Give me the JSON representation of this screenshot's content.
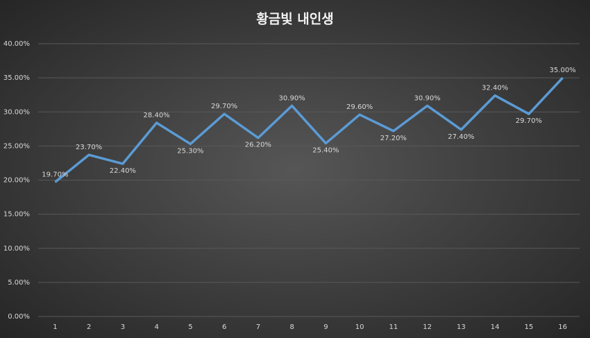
{
  "chart_data": {
    "type": "line",
    "title": "황금빛 내인생",
    "categories": [
      "1",
      "2",
      "3",
      "4",
      "5",
      "6",
      "7",
      "8",
      "9",
      "10",
      "11",
      "12",
      "13",
      "14",
      "15",
      "16"
    ],
    "values": [
      19.7,
      23.7,
      22.4,
      28.4,
      25.3,
      29.7,
      26.2,
      30.9,
      25.4,
      29.6,
      27.2,
      30.9,
      27.4,
      32.4,
      29.7,
      35.0
    ],
    "value_labels": [
      "19.70%",
      "23.70%",
      "22.40%",
      "28.40%",
      "25.30%",
      "29.70%",
      "26.20%",
      "30.90%",
      "25.40%",
      "29.60%",
      "27.20%",
      "30.90%",
      "27.40%",
      "32.40%",
      "29.70%",
      "35.00%"
    ],
    "color": "#5b9bd5",
    "ylim": [
      0,
      40
    ],
    "yticks": [
      {
        "value": 0,
        "label": "0.00%"
      },
      {
        "value": 5,
        "label": "5.00%"
      },
      {
        "value": 10,
        "label": "10.00%"
      },
      {
        "value": 15,
        "label": "15.00%"
      },
      {
        "value": 20,
        "label": "20.00%"
      },
      {
        "value": 25,
        "label": "25.00%"
      },
      {
        "value": 30,
        "label": "30.00%"
      },
      {
        "value": 35,
        "label": "35.00%"
      },
      {
        "value": 40,
        "label": "40.00%"
      }
    ],
    "grid": true
  }
}
